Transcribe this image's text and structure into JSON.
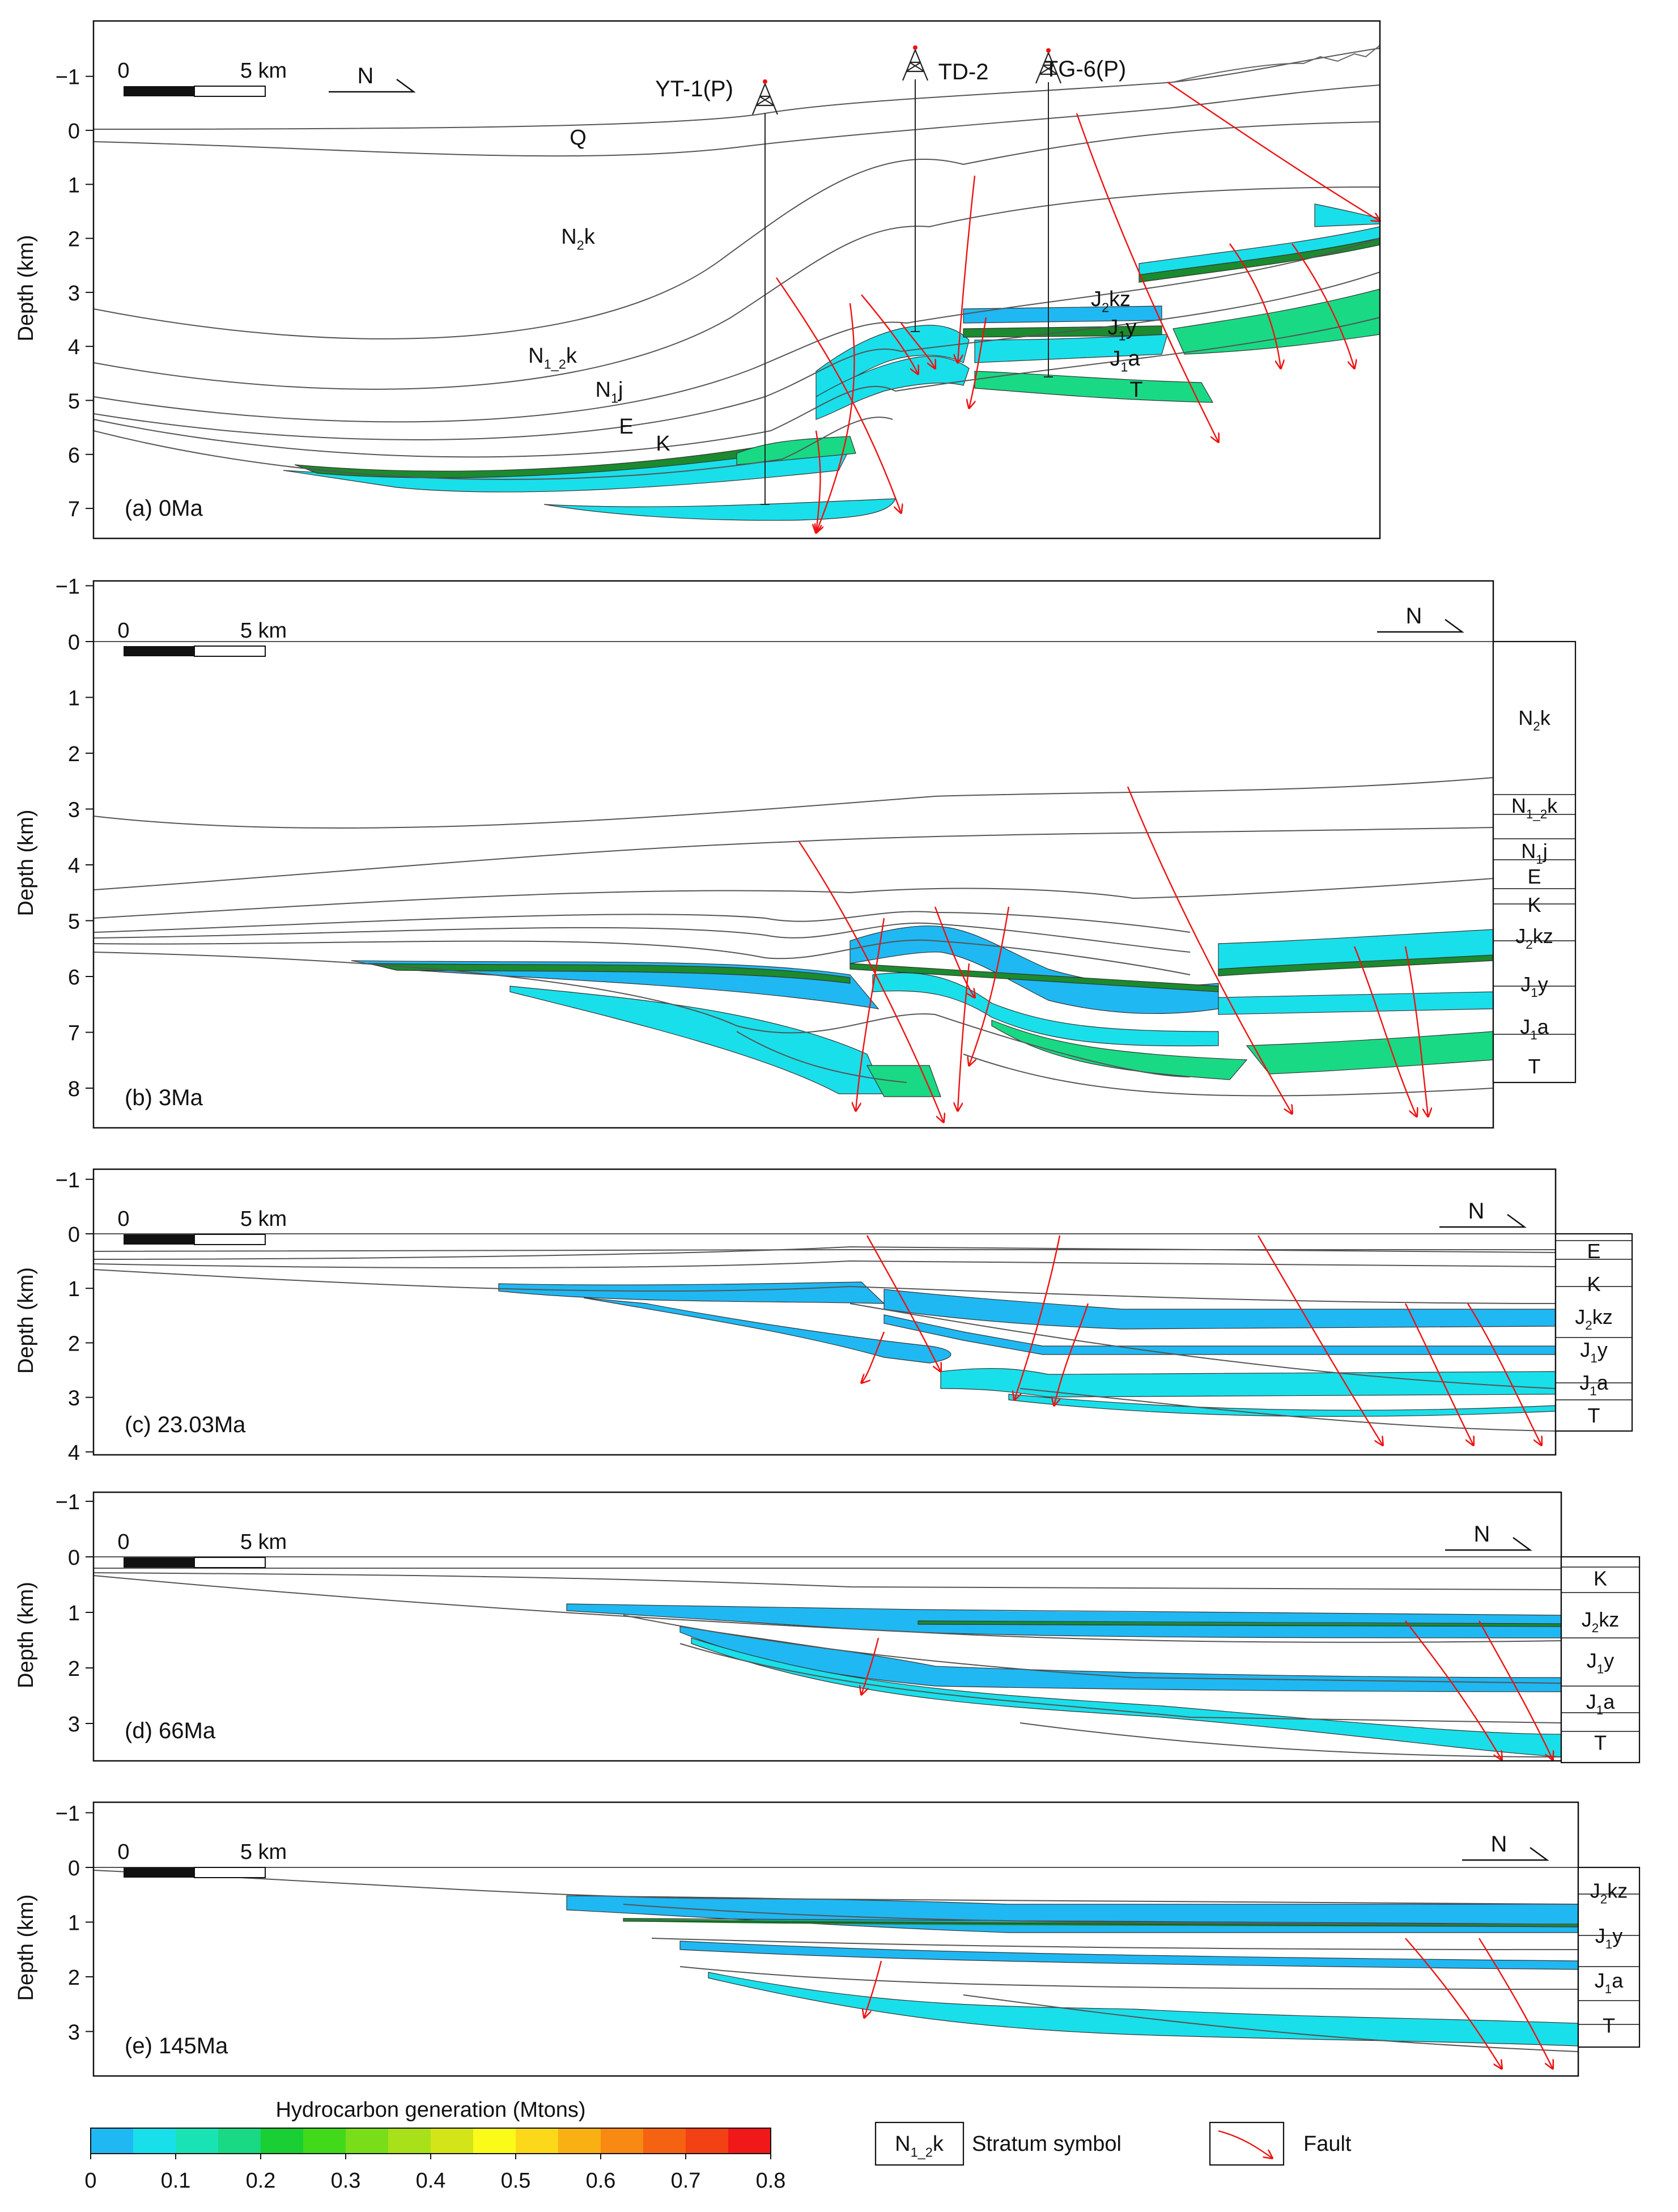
{
  "colors": {
    "frame": "#111111",
    "horizon": "#555555",
    "fault": "#ee1111",
    "source_cyan": "#19dfea",
    "source_blue": "#1fb8f2",
    "source_green": "#19d985",
    "source_dark": "#1c8a2e"
  },
  "axis": {
    "ylabel": "Depth (km)"
  },
  "scale": {
    "zero": "0",
    "length": "5 km"
  },
  "north": "N",
  "panels": [
    {
      "label": "(a) 0Ma",
      "yticks": [
        "−1",
        "0",
        "1",
        "2",
        "3",
        "4",
        "5",
        "6",
        "7"
      ],
      "wells": [
        "YT-1(P)",
        "TD-2",
        "TG-6(P)"
      ],
      "strata": [
        {
          "sym": "Q"
        },
        {
          "sym": "N",
          "sub": "2",
          "rest": "k"
        },
        {
          "sym": "N",
          "sub": "1_2",
          "rest": "k"
        },
        {
          "sym": "N",
          "sub": "1",
          "rest": "j"
        },
        {
          "sym": "E"
        },
        {
          "sym": "K"
        },
        {
          "sym": "J",
          "sub": "2",
          "rest": "kz"
        },
        {
          "sym": "J",
          "sub": "1",
          "rest": "y"
        },
        {
          "sym": "J",
          "sub": "1",
          "rest": "a"
        },
        {
          "sym": "T"
        }
      ]
    },
    {
      "label": "(b) 3Ma",
      "yticks": [
        "−1",
        "0",
        "1",
        "2",
        "3",
        "4",
        "5",
        "6",
        "7",
        "8"
      ],
      "strata": [
        {
          "sym": "N",
          "sub": "2",
          "rest": "k"
        },
        {
          "sym": "N",
          "sub": "1_2",
          "rest": "k"
        },
        {
          "sym": "N",
          "sub": "1",
          "rest": "j"
        },
        {
          "sym": "E"
        },
        {
          "sym": "K"
        },
        {
          "sym": "J",
          "sub": "2",
          "rest": "kz"
        },
        {
          "sym": "J",
          "sub": "1",
          "rest": "y"
        },
        {
          "sym": "J",
          "sub": "1",
          "rest": "a"
        },
        {
          "sym": "T"
        }
      ]
    },
    {
      "label": "(c) 23.03Ma",
      "yticks": [
        "−1",
        "0",
        "1",
        "2",
        "3",
        "4"
      ],
      "strata": [
        {
          "sym": "E"
        },
        {
          "sym": "K"
        },
        {
          "sym": "J",
          "sub": "2",
          "rest": "kz"
        },
        {
          "sym": "J",
          "sub": "1",
          "rest": "y"
        },
        {
          "sym": "J",
          "sub": "1",
          "rest": "a"
        },
        {
          "sym": "T"
        }
      ]
    },
    {
      "label": "(d) 66Ma",
      "yticks": [
        "−1",
        "0",
        "1",
        "2",
        "3"
      ],
      "strata": [
        {
          "sym": "K"
        },
        {
          "sym": "J",
          "sub": "2",
          "rest": "kz"
        },
        {
          "sym": "J",
          "sub": "1",
          "rest": "y"
        },
        {
          "sym": "J",
          "sub": "1",
          "rest": "a"
        },
        {
          "sym": "T"
        }
      ]
    },
    {
      "label": "(e) 145Ma",
      "yticks": [
        "−1",
        "0",
        "1",
        "2",
        "3"
      ],
      "strata": [
        {
          "sym": "J",
          "sub": "2",
          "rest": "kz"
        },
        {
          "sym": "J",
          "sub": "1",
          "rest": "y"
        },
        {
          "sym": "J",
          "sub": "1",
          "rest": "a"
        },
        {
          "sym": "T"
        }
      ]
    }
  ],
  "colorbar": {
    "title": "Hydrocarbon generation (Mtons)",
    "ticks": [
      "0",
      "0.1",
      "0.2",
      "0.3",
      "0.4",
      "0.5",
      "0.6",
      "0.7",
      "0.8"
    ],
    "colors": [
      "#1fb8f2",
      "#19dfea",
      "#19e3b5",
      "#19d985",
      "#19cf33",
      "#41d919",
      "#79de19",
      "#a8e019",
      "#d3e519",
      "#fbfb19",
      "#fbd819",
      "#f9b012",
      "#f88912",
      "#f56212",
      "#f24114",
      "#f01818"
    ]
  },
  "legend": {
    "stratum": {
      "sym": "N",
      "sub": "1_2",
      "rest": "k",
      "label": "Stratum symbol"
    },
    "fault": "Fault"
  }
}
